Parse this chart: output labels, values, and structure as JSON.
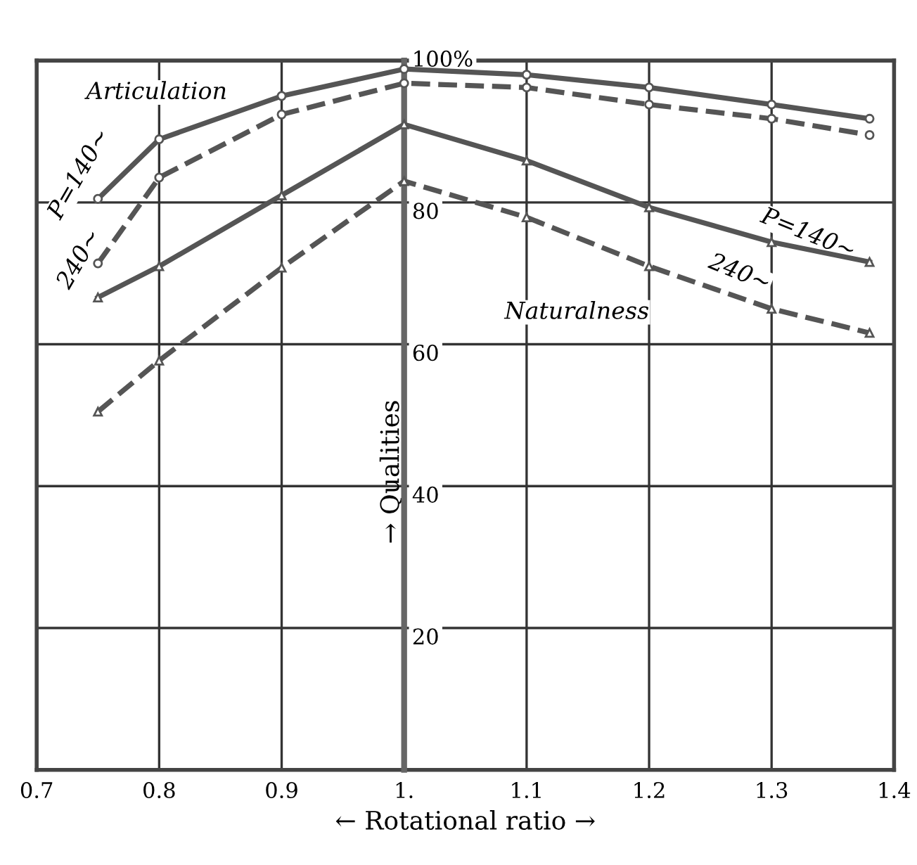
{
  "chart_data": {
    "type": "line",
    "xlabel": "← Rotational ratio →",
    "ylabel": "→ Qualities",
    "x": [
      0.75,
      0.8,
      0.9,
      1.0,
      1.1,
      1.2,
      1.3,
      1.38
    ],
    "series": [
      {
        "color": "#555555",
        "line_style": "solid",
        "marker": "circle",
        "values": [
          80.5,
          88.9,
          95,
          98.8,
          98,
          96.2,
          93.8,
          91.8
        ]
      },
      {
        "color": "#555555",
        "line_style": "dashed",
        "marker": "circle",
        "values": [
          71.4,
          83.5,
          92.4,
          96.8,
          96.2,
          93.8,
          91.8,
          89.5
        ]
      },
      {
        "color": "#555555",
        "line_style": "solid",
        "marker": "triangle",
        "values": [
          66.6,
          71,
          81,
          91,
          85.9,
          79.3,
          74.4,
          71.6
        ]
      },
      {
        "color": "#555555",
        "line_style": "dashed",
        "marker": "triangle",
        "values": [
          50.5,
          57.7,
          70.8,
          83,
          77.9,
          71,
          65,
          61.6
        ]
      }
    ],
    "xlim": [
      0.7,
      1.4
    ],
    "ylim": [
      0,
      100
    ],
    "xticks": [
      0.7,
      0.8,
      0.9,
      {
        "value": 1.0,
        "label": "1."
      },
      1.1,
      1.2,
      1.3,
      1.4
    ],
    "yticks": [
      20,
      40,
      60,
      80,
      {
        "value": 100,
        "label": "100%"
      }
    ],
    "grid": true,
    "annotations": [
      "Articulation",
      "P=140~",
      "240~",
      "Naturalness",
      "P=140~",
      "240~"
    ]
  }
}
